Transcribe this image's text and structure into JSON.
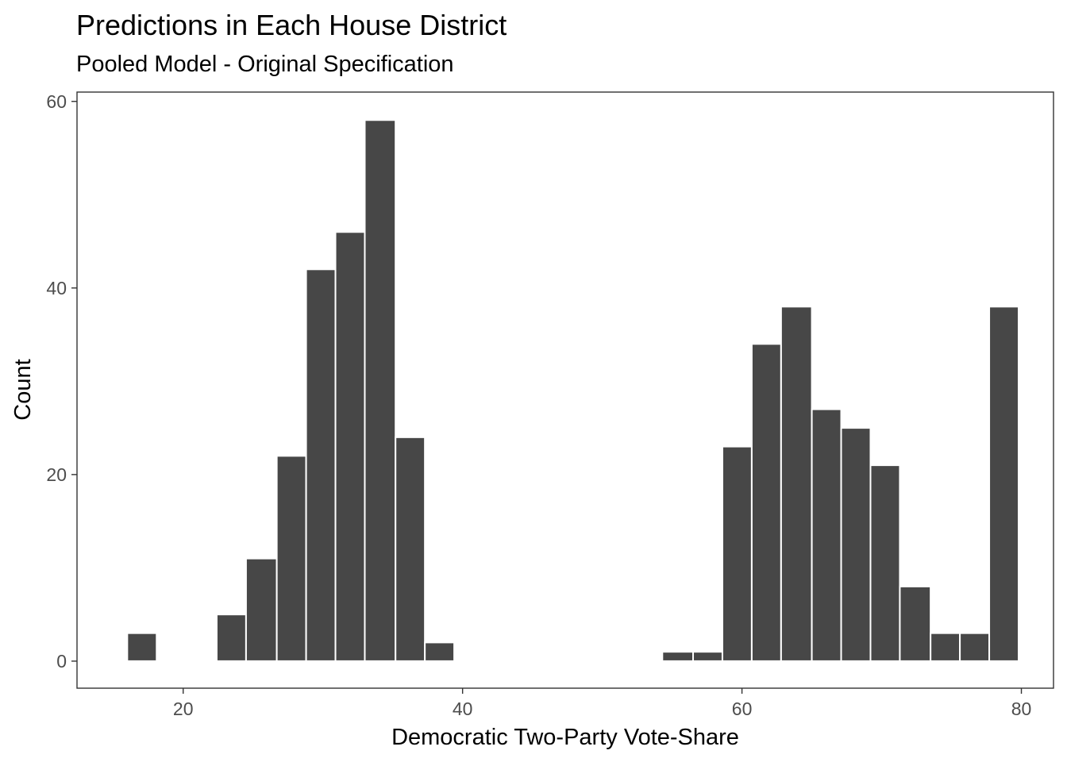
{
  "chart_data": {
    "type": "bar",
    "title": "Predictions in Each House District",
    "subtitle": "Pooled Model - Original Specification",
    "xlabel": "Democratic Two-Party Vote-Share",
    "ylabel": "Count",
    "xlim": [
      12.4,
      82.3
    ],
    "ylim": [
      -2.9,
      61
    ],
    "x_ticks": [
      20,
      40,
      60,
      80
    ],
    "y_ticks": [
      0,
      20,
      40,
      60
    ],
    "grid": false,
    "bar_color": "#474747",
    "bar_outline": "#ffffff",
    "bins": [
      {
        "x0": 16.0,
        "x1": 18.1,
        "count": 3
      },
      {
        "x0": 22.4,
        "x1": 24.5,
        "count": 5
      },
      {
        "x0": 24.5,
        "x1": 26.7,
        "count": 11
      },
      {
        "x0": 26.7,
        "x1": 28.8,
        "count": 22
      },
      {
        "x0": 28.8,
        "x1": 30.9,
        "count": 42
      },
      {
        "x0": 30.9,
        "x1": 33.0,
        "count": 46
      },
      {
        "x0": 33.0,
        "x1": 35.2,
        "count": 58
      },
      {
        "x0": 35.2,
        "x1": 37.3,
        "count": 24
      },
      {
        "x0": 37.3,
        "x1": 39.4,
        "count": 2
      },
      {
        "x0": 54.3,
        "x1": 56.5,
        "count": 1
      },
      {
        "x0": 56.5,
        "x1": 58.6,
        "count": 1
      },
      {
        "x0": 58.6,
        "x1": 60.7,
        "count": 23
      },
      {
        "x0": 60.7,
        "x1": 62.8,
        "count": 34
      },
      {
        "x0": 62.8,
        "x1": 65.0,
        "count": 38
      },
      {
        "x0": 65.0,
        "x1": 67.1,
        "count": 27
      },
      {
        "x0": 67.1,
        "x1": 69.2,
        "count": 25
      },
      {
        "x0": 69.2,
        "x1": 71.3,
        "count": 21
      },
      {
        "x0": 71.3,
        "x1": 73.5,
        "count": 8
      },
      {
        "x0": 73.5,
        "x1": 75.6,
        "count": 3
      },
      {
        "x0": 75.6,
        "x1": 77.7,
        "count": 3
      },
      {
        "x0": 77.7,
        "x1": 79.8,
        "count": 38
      }
    ]
  }
}
